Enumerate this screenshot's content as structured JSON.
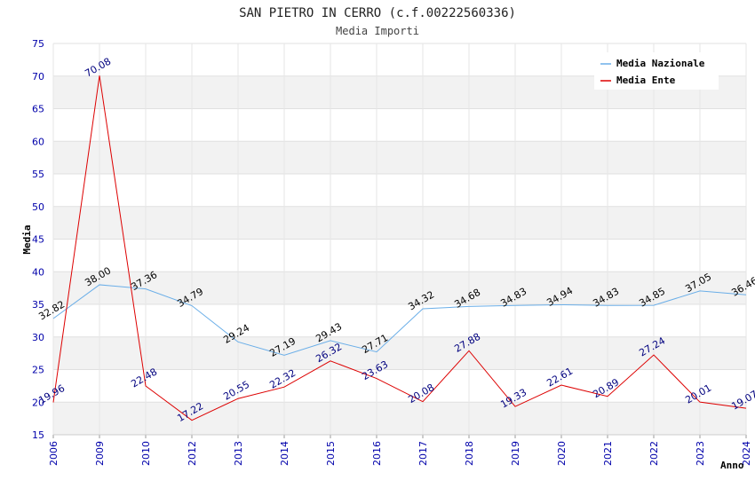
{
  "chart_data": {
    "type": "line",
    "title": "SAN PIETRO IN CERRO (c.f.00222560336)",
    "subtitle": "Media Importi",
    "xlabel": "Anno",
    "ylabel": "Media",
    "ylim": [
      15,
      75
    ],
    "yticks": [
      15,
      20,
      25,
      30,
      35,
      40,
      45,
      50,
      55,
      60,
      65,
      70,
      75
    ],
    "categories": [
      "2006",
      "2009",
      "2010",
      "2012",
      "2013",
      "2014",
      "2015",
      "2016",
      "2017",
      "2018",
      "2019",
      "2020",
      "2021",
      "2022",
      "2023",
      "2024"
    ],
    "legend_position": "top-right",
    "grid": true,
    "series": [
      {
        "name": "Media Nazionale",
        "color": "#6aaee8",
        "label_color": "#000000",
        "values": [
          32.82,
          38.0,
          37.36,
          34.79,
          29.24,
          27.19,
          29.43,
          27.71,
          34.32,
          34.68,
          34.83,
          34.94,
          34.83,
          34.85,
          37.05,
          36.46
        ],
        "labels": [
          "32.82",
          "38.00",
          "37.36",
          "34.79",
          "29.24",
          "27.19",
          "29.43",
          "27.71",
          "34.32",
          "34.68",
          "34.83",
          "34.94",
          "34.83",
          "34.85",
          "37.05",
          "36.46"
        ]
      },
      {
        "name": "Media Ente",
        "color": "#dd0000",
        "label_color": "#00007f",
        "values": [
          19.96,
          70.08,
          22.48,
          17.22,
          20.55,
          22.32,
          26.32,
          23.63,
          20.08,
          27.88,
          19.33,
          22.61,
          20.89,
          27.24,
          20.01,
          19.07
        ],
        "labels": [
          "19.96",
          "70.08",
          "22.48",
          "17.22",
          "20.55",
          "22.32",
          "26.32",
          "23.63",
          "20.08",
          "27.88",
          "19.33",
          "22.61",
          "20.89",
          "27.24",
          "20.01",
          "19.07"
        ]
      }
    ]
  }
}
